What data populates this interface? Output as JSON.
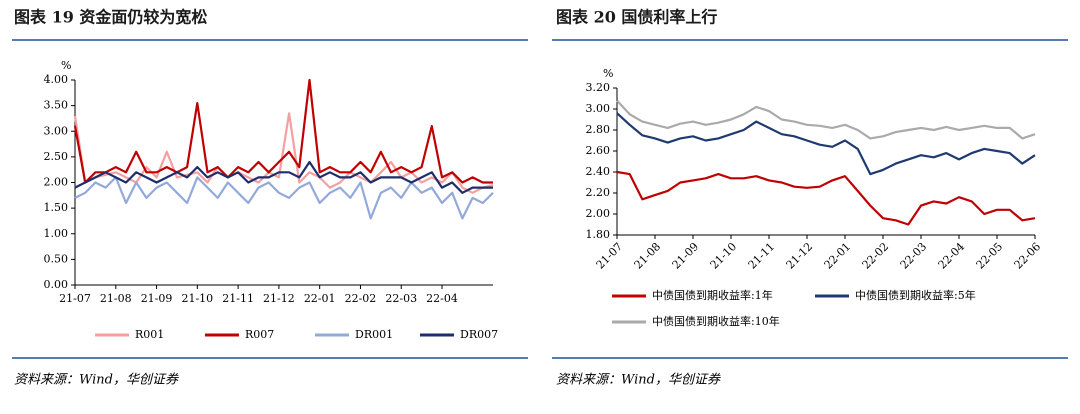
{
  "chart_data": [
    {
      "type": "line",
      "title": "图表 19 资金面仍较为宽松",
      "y_unit": "%",
      "source": "资料来源：Wind，华创证券",
      "categories": [
        "21-07",
        null,
        null,
        null,
        "21-08",
        null,
        null,
        null,
        "21-09",
        null,
        null,
        null,
        "21-10",
        null,
        null,
        null,
        "21-11",
        null,
        null,
        null,
        "21-12",
        null,
        null,
        null,
        "22-01",
        null,
        null,
        null,
        "22-02",
        null,
        null,
        null,
        "22-03",
        null,
        null,
        null,
        "22-04",
        null,
        null,
        null,
        null,
        null
      ],
      "ylim": [
        0,
        4
      ],
      "yticks": [
        {
          "value": 0,
          "label": "0.00"
        },
        {
          "value": 0.5,
          "label": "0.50"
        },
        {
          "value": 1,
          "label": "1.00"
        },
        {
          "value": 1.5,
          "label": "1.50"
        },
        {
          "value": 2,
          "label": "2.00"
        },
        {
          "value": 2.5,
          "label": "2.50"
        },
        {
          "value": 3,
          "label": "3.00"
        },
        {
          "value": 3.5,
          "label": "3.50"
        },
        {
          "value": 4,
          "label": "4.00"
        }
      ],
      "series": [
        {
          "name": "R001",
          "color": "#f4a0a0",
          "values": [
            3.3,
            2.0,
            2.1,
            2.15,
            2.2,
            2.1,
            2.0,
            2.3,
            2.1,
            2.6,
            2.1,
            2.15,
            2.2,
            2.0,
            2.3,
            2.1,
            2.2,
            2.1,
            2.0,
            2.2,
            2.1,
            3.35,
            2.0,
            2.2,
            2.1,
            1.9,
            2.0,
            2.2,
            2.1,
            2.0,
            2.2,
            2.4,
            2.1,
            2.2,
            2.0,
            2.1,
            2.0,
            2.2,
            1.9,
            1.8,
            1.9,
            1.95
          ]
        },
        {
          "name": "R007",
          "color": "#c00000",
          "values": [
            3.1,
            2.0,
            2.2,
            2.2,
            2.3,
            2.2,
            2.6,
            2.2,
            2.2,
            2.3,
            2.2,
            2.3,
            3.55,
            2.2,
            2.3,
            2.1,
            2.3,
            2.2,
            2.4,
            2.2,
            2.4,
            2.6,
            2.3,
            4.0,
            2.2,
            2.3,
            2.2,
            2.2,
            2.4,
            2.2,
            2.6,
            2.2,
            2.3,
            2.2,
            2.3,
            3.1,
            2.1,
            2.2,
            2.0,
            2.1,
            2.0,
            2.0
          ]
        },
        {
          "name": "DR001",
          "color": "#93a9db",
          "values": [
            1.7,
            1.8,
            2.0,
            1.9,
            2.1,
            1.6,
            2.0,
            1.7,
            1.9,
            2.0,
            1.8,
            1.6,
            2.1,
            1.9,
            1.7,
            2.0,
            1.8,
            1.6,
            1.9,
            2.0,
            1.8,
            1.7,
            1.9,
            2.0,
            1.6,
            1.8,
            1.9,
            1.7,
            2.0,
            1.3,
            1.8,
            1.9,
            1.7,
            2.0,
            1.8,
            1.9,
            1.6,
            1.8,
            1.3,
            1.7,
            1.6,
            1.8
          ]
        },
        {
          "name": "DR007",
          "color": "#1f2d6b",
          "values": [
            1.9,
            2.0,
            2.1,
            2.2,
            2.1,
            2.0,
            2.2,
            2.1,
            2.0,
            2.1,
            2.2,
            2.1,
            2.3,
            2.1,
            2.2,
            2.1,
            2.2,
            2.0,
            2.1,
            2.1,
            2.2,
            2.2,
            2.1,
            2.4,
            2.1,
            2.2,
            2.1,
            2.1,
            2.2,
            2.0,
            2.1,
            2.1,
            2.1,
            2.0,
            2.1,
            2.2,
            1.9,
            2.0,
            1.8,
            1.9,
            1.9,
            1.9
          ]
        }
      ]
    },
    {
      "type": "line",
      "title": "图表 20 国债利率上行",
      "y_unit": "%",
      "source": "资料来源：Wind，华创证券",
      "categories": [
        "21-07",
        null,
        null,
        "21-08",
        null,
        null,
        "21-09",
        null,
        null,
        "21-10",
        null,
        null,
        "21-11",
        null,
        null,
        "21-12",
        null,
        null,
        "22-01",
        null,
        null,
        "22-02",
        null,
        null,
        "22-03",
        null,
        null,
        "22-04",
        null,
        null,
        "22-05",
        null,
        null,
        "22-06"
      ],
      "ylim": [
        1.8,
        3.2
      ],
      "yticks": [
        {
          "value": 1.8,
          "label": "1.80"
        },
        {
          "value": 2,
          "label": "2.00"
        },
        {
          "value": 2.2,
          "label": "2.20"
        },
        {
          "value": 2.4,
          "label": "2.40"
        },
        {
          "value": 2.6,
          "label": "2.60"
        },
        {
          "value": 2.8,
          "label": "2.80"
        },
        {
          "value": 3,
          "label": "3.00"
        },
        {
          "value": 3.2,
          "label": "3.20"
        }
      ],
      "series": [
        {
          "name": "中债国债到期收益率:1年",
          "color": "#c00000",
          "values": [
            2.4,
            2.38,
            2.14,
            2.18,
            2.22,
            2.3,
            2.32,
            2.34,
            2.38,
            2.34,
            2.34,
            2.36,
            2.32,
            2.3,
            2.26,
            2.25,
            2.26,
            2.32,
            2.36,
            2.22,
            2.08,
            1.96,
            1.94,
            1.9,
            2.08,
            2.12,
            2.1,
            2.16,
            2.12,
            2.0,
            2.04,
            2.04,
            1.94,
            1.96
          ]
        },
        {
          "name": "中债国债到期收益率:5年",
          "color": "#1f3a70",
          "values": [
            2.96,
            2.85,
            2.75,
            2.72,
            2.68,
            2.72,
            2.74,
            2.7,
            2.72,
            2.76,
            2.8,
            2.88,
            2.82,
            2.76,
            2.74,
            2.7,
            2.66,
            2.64,
            2.7,
            2.62,
            2.38,
            2.42,
            2.48,
            2.52,
            2.56,
            2.54,
            2.58,
            2.52,
            2.58,
            2.62,
            2.6,
            2.58,
            2.48,
            2.56
          ]
        },
        {
          "name": "中债国债到期收益率:10年",
          "color": "#aaaaaa",
          "values": [
            3.08,
            2.95,
            2.88,
            2.85,
            2.82,
            2.86,
            2.88,
            2.85,
            2.87,
            2.9,
            2.95,
            3.02,
            2.98,
            2.9,
            2.88,
            2.85,
            2.84,
            2.82,
            2.85,
            2.8,
            2.72,
            2.74,
            2.78,
            2.8,
            2.82,
            2.8,
            2.83,
            2.8,
            2.82,
            2.84,
            2.82,
            2.82,
            2.72,
            2.76
          ]
        }
      ]
    }
  ]
}
